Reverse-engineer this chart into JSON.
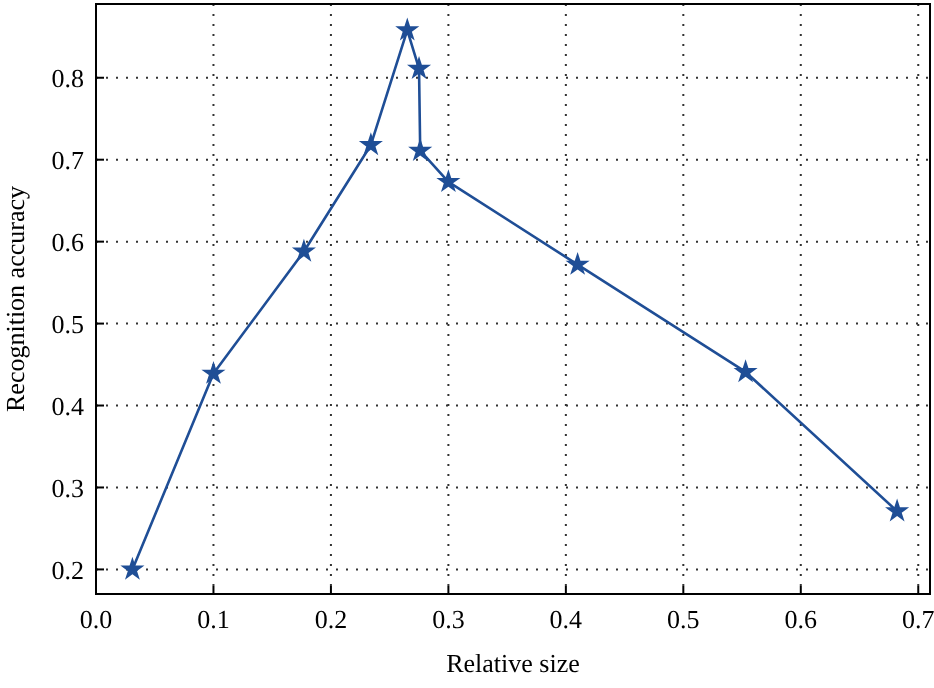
{
  "chart_data": {
    "type": "line",
    "xlabel": "Relative size",
    "ylabel": "Recognition accuracy",
    "x": [
      0.031,
      0.1,
      0.177,
      0.234,
      0.265,
      0.275,
      0.276,
      0.3,
      0.41,
      0.553,
      0.682
    ],
    "series": [
      {
        "color": "#1f4e96",
        "values": [
          0.2,
          0.439,
          0.588,
          0.718,
          0.858,
          0.811,
          0.711,
          0.673,
          0.572,
          0.441,
          0.271
        ]
      }
    ],
    "xlim": [
      0,
      0.71
    ],
    "xticks": [
      {
        "value": 0,
        "label": "0.0"
      },
      0.1,
      0.2,
      0.3,
      0.4,
      0.5,
      0.6,
      0.7
    ],
    "ylim": [
      0.17,
      0.89
    ],
    "yticks": [
      0.2,
      0.3,
      0.4,
      0.5,
      0.6,
      0.7,
      0.8
    ],
    "grid": true,
    "marker": "star",
    "line_style": "solid"
  }
}
